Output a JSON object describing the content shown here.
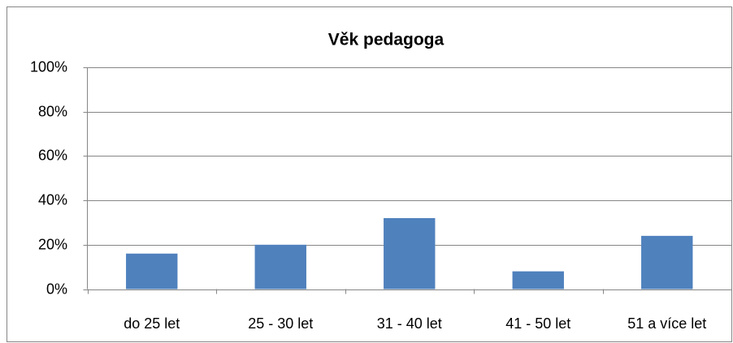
{
  "chart_data": {
    "type": "bar",
    "title": "Věk pedagoga",
    "categories": [
      "do 25 let",
      "25 - 30 let",
      "31 - 40 let",
      "41 - 50 let",
      "51 a více let"
    ],
    "values": [
      16,
      20,
      32,
      8,
      24
    ],
    "color": "#4f81bd",
    "ylim": [
      0,
      100
    ],
    "yticks": [
      {
        "value": 0,
        "label": "0%"
      },
      {
        "value": 20,
        "label": "20%"
      },
      {
        "value": 40,
        "label": "40%"
      },
      {
        "value": 60,
        "label": "60%"
      },
      {
        "value": 80,
        "label": "80%"
      },
      {
        "value": 100,
        "label": "100%"
      }
    ],
    "grid": true
  }
}
